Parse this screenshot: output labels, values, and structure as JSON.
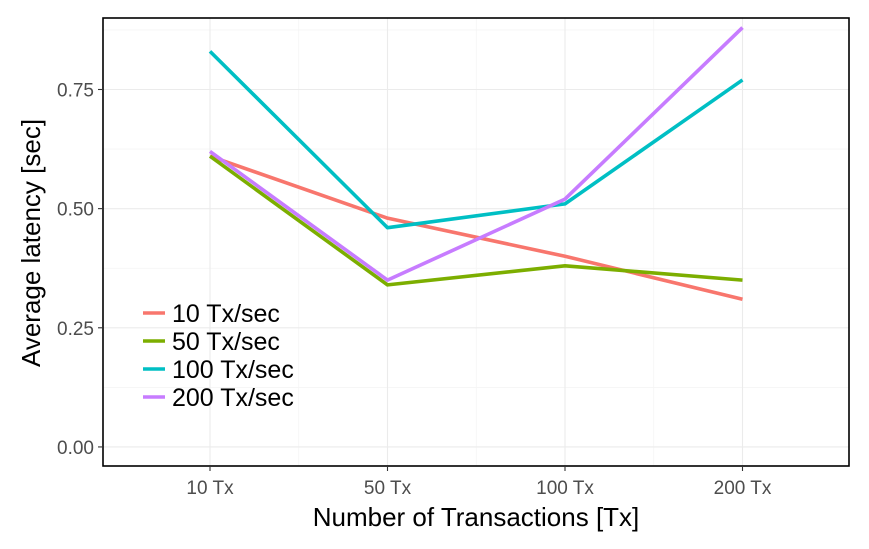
{
  "chart_data": {
    "type": "line",
    "xlabel": "Number of Transactions [Tx]",
    "ylabel": "Average latency [sec]",
    "categories": [
      "10 Tx",
      "50 Tx",
      "100 Tx",
      "200 Tx"
    ],
    "ylim": [
      -0.04,
      0.9
    ],
    "yticks": [
      0.0,
      0.25,
      0.5,
      0.75
    ],
    "ytick_labels": [
      "0.00",
      "0.25",
      "0.50",
      "0.75"
    ],
    "grid": true,
    "legend_position": "bottom-left-inside",
    "series": [
      {
        "name": "10 Tx/sec",
        "color": "#F8766D",
        "values": [
          0.61,
          0.48,
          0.4,
          0.31
        ]
      },
      {
        "name": "50 Tx/sec",
        "color": "#7CAE00",
        "values": [
          0.61,
          0.34,
          0.38,
          0.35
        ]
      },
      {
        "name": "100 Tx/sec",
        "color": "#00BFC4",
        "values": [
          0.83,
          0.46,
          0.51,
          0.77
        ]
      },
      {
        "name": "200 Tx/sec",
        "color": "#C77CFF",
        "values": [
          0.62,
          0.35,
          0.52,
          0.88
        ]
      }
    ]
  }
}
